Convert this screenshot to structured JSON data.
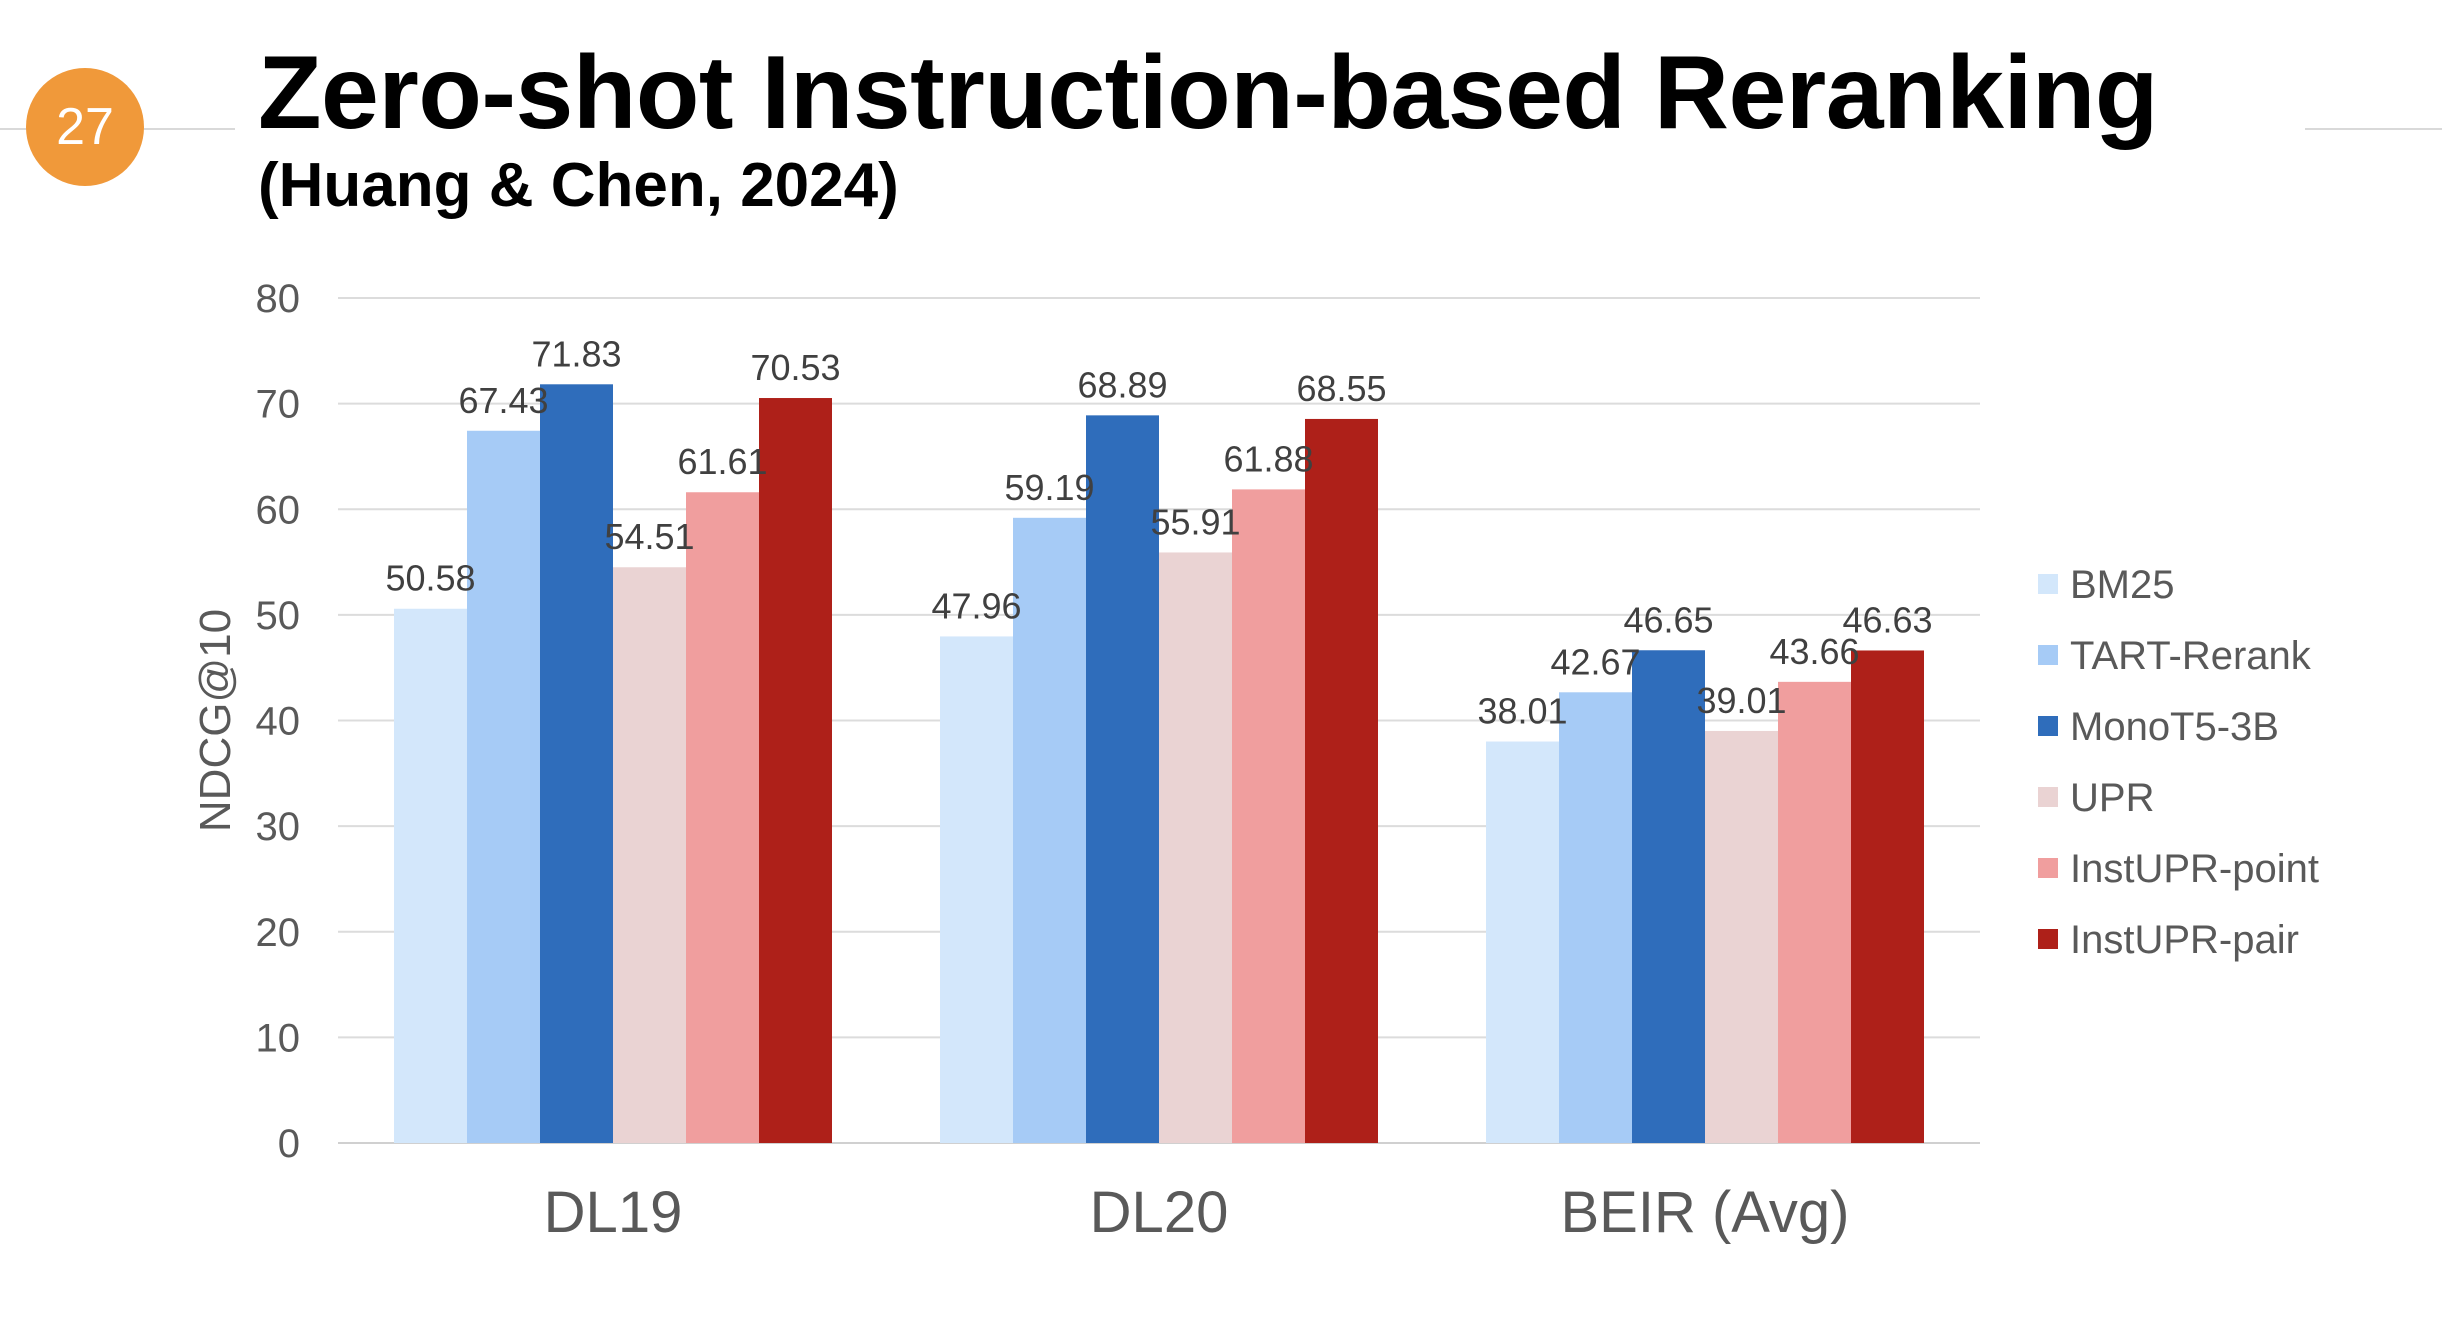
{
  "slide": {
    "number": "27",
    "title": "Zero-shot Instruction-based Reranking",
    "subtitle": "(Huang & Chen, 2024)"
  },
  "chart_data": {
    "type": "bar",
    "title": "",
    "xlabel": "",
    "ylabel": "NDCG@10",
    "ylim": [
      0,
      80
    ],
    "yticks": [
      0,
      10,
      20,
      30,
      40,
      50,
      60,
      70,
      80
    ],
    "grid": true,
    "legend_position": "right",
    "categories": [
      "DL19",
      "DL20",
      "BEIR (Avg)"
    ],
    "series": [
      {
        "name": "BM25",
        "color": "#d3e7fb",
        "values": [
          50.58,
          47.96,
          38.01
        ],
        "labels": [
          "50.58",
          "47.96",
          "38.01"
        ]
      },
      {
        "name": "TART-Rerank",
        "color": "#a6cbf6",
        "values": [
          67.43,
          59.19,
          42.67
        ],
        "labels": [
          "67.43",
          "59.19",
          "42.67"
        ]
      },
      {
        "name": "MonoT5-3B",
        "color": "#2f6dbb",
        "values": [
          71.83,
          68.89,
          46.65
        ],
        "labels": [
          "71.83",
          "68.89",
          "46.65"
        ]
      },
      {
        "name": "UPR",
        "color": "#ead3d3",
        "values": [
          54.51,
          55.91,
          39.01
        ],
        "labels": [
          "54.51",
          "55.91",
          "39.01"
        ]
      },
      {
        "name": "InstUPR-point",
        "color": "#f09e9e",
        "values": [
          61.61,
          61.88,
          43.66
        ],
        "labels": [
          "61.61",
          "61.88",
          "43.66"
        ]
      },
      {
        "name": "InstUPR-pair",
        "color": "#ae2019",
        "values": [
          70.53,
          68.55,
          46.63
        ],
        "labels": [
          "70.53",
          "68.55",
          "46.63"
        ]
      }
    ]
  }
}
